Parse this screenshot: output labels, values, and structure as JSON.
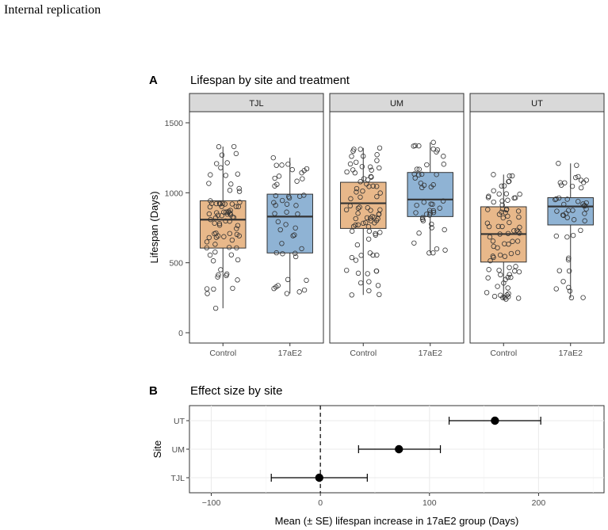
{
  "header": {
    "title": "Internal replication"
  },
  "colors": {
    "control_fill": "#e8b88a",
    "treatment_fill": "#8fb3d4",
    "strip_bg": "#d9d9d9",
    "grid": "#ebebeb",
    "panel_border": "#333333"
  },
  "chart_data": [
    {
      "type": "box",
      "panel_letter": "A",
      "title": "Lifespan by site and treatment",
      "xlabel": "",
      "ylabel": "Lifespan (Days)",
      "ylim": [
        0,
        1500
      ],
      "yticks": [
        0,
        500,
        1000,
        1500
      ],
      "categories": [
        "Control",
        "17aE2"
      ],
      "facets": [
        {
          "name": "TJL",
          "boxes": [
            {
              "group": "Control",
              "min": 175,
              "q1": 605,
              "median": 808,
              "q3": 943,
              "max": 1330
            },
            {
              "group": "17aE2",
              "min": 280,
              "q1": 570,
              "median": 830,
              "q3": 990,
              "max": 1250
            }
          ]
        },
        {
          "name": "UM",
          "boxes": [
            {
              "group": "Control",
              "min": 270,
              "q1": 745,
              "median": 925,
              "q3": 1075,
              "max": 1320
            },
            {
              "group": "17aE2",
              "min": 570,
              "q1": 830,
              "median": 952,
              "q3": 1145,
              "max": 1360
            }
          ]
        },
        {
          "name": "UT",
          "boxes": [
            {
              "group": "Control",
              "min": 240,
              "q1": 505,
              "median": 705,
              "q3": 900,
              "max": 1130
            },
            {
              "group": "17aE2",
              "min": 250,
              "q1": 770,
              "median": 902,
              "q3": 965,
              "max": 1210
            }
          ]
        }
      ]
    },
    {
      "type": "dot-errorbar",
      "panel_letter": "B",
      "title": "Effect size by site",
      "xlabel": "Mean (± SE) lifespan increase in 17aE2 group (Days)",
      "ylabel": "Site",
      "xlim": [
        -120,
        260
      ],
      "xticks": [
        -100,
        0,
        100,
        200
      ],
      "reference_line": 0,
      "categories": [
        "UT",
        "UM",
        "TJL"
      ],
      "points": [
        {
          "site": "UT",
          "mean": 160,
          "lower": 118,
          "upper": 202
        },
        {
          "site": "UM",
          "mean": 72,
          "lower": 35,
          "upper": 110
        },
        {
          "site": "TJL",
          "mean": -1,
          "lower": -45,
          "upper": 43
        }
      ]
    }
  ]
}
